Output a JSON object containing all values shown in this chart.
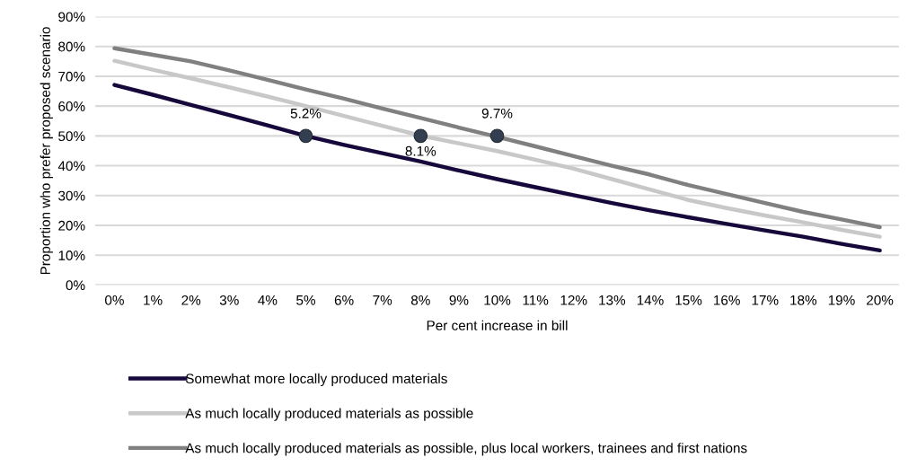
{
  "chart_data": {
    "type": "line",
    "xlabel": "Per cent increase in bill",
    "ylabel": "Proportion who prefer proposed scenario",
    "categories": [
      "0%",
      "1%",
      "2%",
      "3%",
      "4%",
      "5%",
      "6%",
      "7%",
      "8%",
      "9%",
      "10%",
      "11%",
      "12%",
      "13%",
      "14%",
      "15%",
      "16%",
      "17%",
      "18%",
      "19%",
      "20%"
    ],
    "series": [
      {
        "name": "Somewhat more locally produced materials",
        "color": "#16083a",
        "values": [
          67.1,
          63.8,
          60.4,
          57.0,
          53.5,
          50.0,
          47.0,
          44.2,
          41.4,
          38.4,
          35.5,
          32.8,
          30.1,
          27.5,
          25.0,
          22.7,
          20.5,
          18.3,
          16.2,
          13.8,
          11.6
        ]
      },
      {
        "name": "As much locally produced materials as possible",
        "color": "#c8c8c8",
        "values": [
          75.2,
          72.2,
          69.3,
          66.3,
          63.2,
          60.0,
          56.7,
          53.4,
          50.1,
          47.5,
          44.9,
          42.0,
          39.0,
          35.5,
          32.0,
          28.5,
          25.8,
          23.3,
          21.0,
          18.5,
          16.2
        ]
      },
      {
        "name": "As much locally produced materials as possible, plus local workers, trainees and first nations",
        "color": "#808080",
        "values": [
          79.4,
          77.2,
          75.0,
          72.0,
          68.8,
          65.6,
          62.5,
          59.2,
          56.0,
          52.8,
          49.7,
          46.5,
          43.2,
          40.0,
          37.0,
          33.5,
          30.5,
          27.5,
          24.5,
          22.0,
          19.4
        ]
      },
      {
        "type": "scatter",
        "marker": "circle",
        "color": "#333f50",
        "x": [
          "5%",
          "8%",
          "10%"
        ],
        "values": [
          50,
          50,
          50
        ]
      }
    ],
    "annotations": [
      {
        "text": "5.2%",
        "x": "5%",
        "y": 50
      },
      {
        "text": "8.1%",
        "x": "8%",
        "y": 50
      },
      {
        "text": "9.7%",
        "x": "10%",
        "y": 50
      }
    ],
    "ylim": [
      0,
      90
    ],
    "yticks": [
      {
        "value": 0,
        "label": "0%"
      },
      {
        "value": 10,
        "label": "10%"
      },
      {
        "value": 20,
        "label": "20%"
      },
      {
        "value": 30,
        "label": "30%"
      },
      {
        "value": 40,
        "label": "40%"
      },
      {
        "value": 50,
        "label": "50%"
      },
      {
        "value": 60,
        "label": "60%"
      },
      {
        "value": 70,
        "label": "70%"
      },
      {
        "value": 80,
        "label": "80%"
      },
      {
        "value": 90,
        "label": "90%"
      }
    ],
    "grid": "y",
    "legend": "bottom",
    "line_style": "solid"
  }
}
